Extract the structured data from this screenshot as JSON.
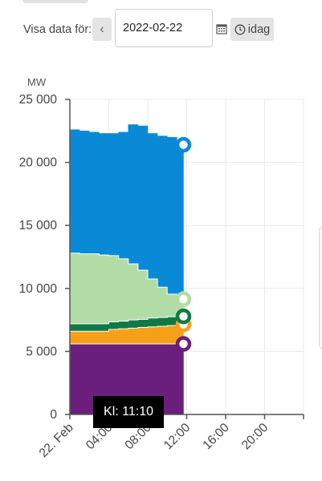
{
  "controls": {
    "label": "Visa data för:",
    "date_value": "2022-02-22",
    "today_label": "idag",
    "prev_icon": "chevron-left-icon",
    "calendar_icon": "calendar-icon",
    "clock_icon": "clock-icon"
  },
  "tooltip": {
    "text": "Kl: 11:10"
  },
  "colors": {
    "purple": "#6b1f7c",
    "orange": "#f6a01a",
    "darkgreen": "#0f7a46",
    "lightgreen": "#b2dca6",
    "blue": "#0a8ad6"
  },
  "chart_data": {
    "type": "area",
    "unit_label": "MW",
    "stacked": true,
    "step": true,
    "x_tick_labels": [
      "22. Feb",
      "04:00",
      "08:00",
      "12:00",
      "16:00",
      "20:00"
    ],
    "xlim": [
      0,
      24
    ],
    "ylim": [
      0,
      25000
    ],
    "y_ticks": [
      0,
      5000,
      10000,
      15000,
      20000,
      25000
    ],
    "y_tick_labels": [
      "0",
      "5 000",
      "10 000",
      "15 000",
      "20 000",
      "25 000"
    ],
    "grid": true,
    "x_hours": [
      0,
      1,
      2,
      3,
      4,
      5,
      6,
      7,
      8,
      9,
      10,
      11
    ],
    "totals": [
      22600,
      22500,
      22400,
      22300,
      22300,
      22400,
      23000,
      22900,
      22300,
      22100,
      22000,
      21400
    ],
    "series": [
      {
        "values": [
          5600,
          5600,
          5600,
          5600,
          5600,
          5600,
          5600,
          5600,
          5600,
          5600,
          5600,
          5600
        ]
      },
      {
        "values": [
          1000,
          1000,
          1000,
          1000,
          1150,
          1200,
          1250,
          1300,
          1350,
          1400,
          1450,
          1550
        ]
      },
      {
        "values": [
          600,
          600,
          600,
          600,
          600,
          600,
          650,
          650,
          700,
          700,
          700,
          700
        ]
      },
      {
        "values": [
          5600,
          5550,
          5550,
          5450,
          5250,
          4950,
          4450,
          3900,
          3100,
          2400,
          1800,
          1300
        ]
      },
      {
        "values": [
          9800,
          9750,
          9650,
          9650,
          9700,
          10050,
          11050,
          11450,
          11550,
          12000,
          12450,
          12250
        ]
      }
    ]
  }
}
